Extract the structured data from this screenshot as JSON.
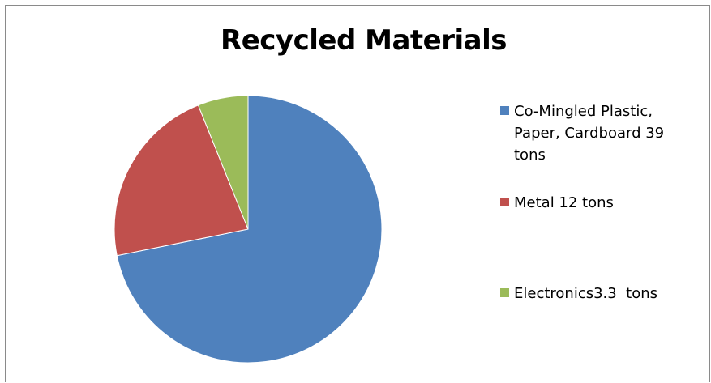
{
  "chart_data": {
    "type": "pie",
    "title": "Recycled Materials",
    "categories": [
      "Co-Mingled Plastic, Paper, Cardboard 39 tons",
      "Metal 12 tons",
      "Electronics3.3  tons"
    ],
    "values": [
      39,
      12,
      3.3
    ],
    "colors": [
      "#4f81bd",
      "#c0504d",
      "#9bbb59"
    ],
    "legend_position": "right"
  }
}
